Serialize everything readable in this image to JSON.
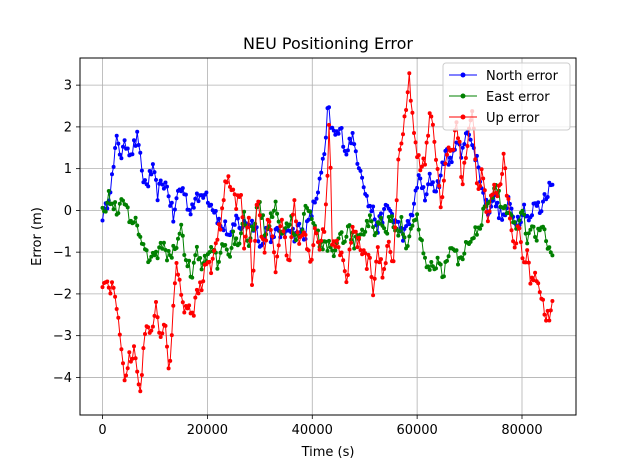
{
  "chart_data": {
    "type": "line",
    "title": "NEU Positioning Error",
    "xlabel": "Time (s)",
    "ylabel": "Error (m)",
    "xlim": [
      -4300,
      90300
    ],
    "ylim": [
      -4.9,
      3.65
    ],
    "xticks": [
      0,
      20000,
      40000,
      60000,
      80000
    ],
    "yticks": [
      -4,
      -3,
      -2,
      -1,
      0,
      1,
      2,
      3
    ],
    "grid": true,
    "legend_position": "top-right",
    "series": [
      {
        "name": "North error",
        "color": "#0000ff",
        "marker": "circle",
        "anchors": [
          [
            0,
            -0.1
          ],
          [
            500,
            -0.05
          ],
          [
            1200,
            0.4
          ],
          [
            2000,
            0.9
          ],
          [
            2800,
            1.8
          ],
          [
            3500,
            1.3
          ],
          [
            4500,
            1.6
          ],
          [
            5500,
            1.4
          ],
          [
            6800,
            1.8
          ],
          [
            7500,
            0.8
          ],
          [
            8500,
            0.6
          ],
          [
            9500,
            1.0
          ],
          [
            10500,
            0.4
          ],
          [
            11500,
            0.7
          ],
          [
            12500,
            0.5
          ],
          [
            13500,
            -0.2
          ],
          [
            14500,
            0.5
          ],
          [
            15500,
            0.5
          ],
          [
            16500,
            0.0
          ],
          [
            17500,
            0.2
          ],
          [
            18500,
            0.3
          ],
          [
            19500,
            0.5
          ],
          [
            20500,
            0.2
          ],
          [
            21500,
            0.0
          ],
          [
            22500,
            -0.4
          ],
          [
            23500,
            -0.4
          ],
          [
            24500,
            -0.7
          ],
          [
            25500,
            -0.2
          ],
          [
            26500,
            -0.4
          ],
          [
            27500,
            -0.3
          ],
          [
            28500,
            -0.3
          ],
          [
            29500,
            -0.5
          ],
          [
            30500,
            -0.9
          ],
          [
            31500,
            -0.3
          ],
          [
            32500,
            -0.8
          ],
          [
            33500,
            -0.4
          ],
          [
            34500,
            -0.7
          ],
          [
            35500,
            -0.3
          ],
          [
            36500,
            -0.6
          ],
          [
            37500,
            -0.4
          ],
          [
            38500,
            -0.6
          ],
          [
            39500,
            -0.2
          ],
          [
            40500,
            0.2
          ],
          [
            41500,
            0.7
          ],
          [
            42500,
            1.5
          ],
          [
            43000,
            2.5
          ],
          [
            43700,
            1.9
          ],
          [
            44500,
            1.8
          ],
          [
            45500,
            1.9
          ],
          [
            46500,
            1.4
          ],
          [
            47500,
            1.8
          ],
          [
            48500,
            1.3
          ],
          [
            49500,
            0.9
          ],
          [
            50500,
            0.2
          ],
          [
            51500,
            0.0
          ],
          [
            52500,
            -0.4
          ],
          [
            53500,
            -0.1
          ],
          [
            54500,
            0.1
          ],
          [
            55500,
            -0.2
          ],
          [
            56500,
            -0.4
          ],
          [
            57500,
            -0.6
          ],
          [
            58500,
            -0.3
          ],
          [
            59500,
            0.2
          ],
          [
            60500,
            0.9
          ],
          [
            61500,
            0.2
          ],
          [
            62500,
            0.8
          ],
          [
            63500,
            0.5
          ],
          [
            64500,
            0.8
          ],
          [
            65500,
            1.5
          ],
          [
            66500,
            1.0
          ],
          [
            67500,
            1.8
          ],
          [
            68500,
            1.2
          ],
          [
            69500,
            2.1
          ],
          [
            70500,
            1.5
          ],
          [
            71500,
            1.2
          ],
          [
            72500,
            0.4
          ],
          [
            73500,
            0.0
          ],
          [
            74500,
            0.3
          ],
          [
            75500,
            0.0
          ],
          [
            76500,
            -0.2
          ],
          [
            77500,
            0.2
          ],
          [
            78500,
            -0.2
          ],
          [
            79500,
            -0.2
          ],
          [
            80500,
            0.1
          ],
          [
            81500,
            -0.3
          ],
          [
            82500,
            0.2
          ],
          [
            83500,
            0.0
          ],
          [
            84500,
            0.4
          ],
          [
            85500,
            0.6
          ]
        ]
      },
      {
        "name": "East error",
        "color": "#008000",
        "marker": "circle",
        "anchors": [
          [
            0,
            0.2
          ],
          [
            500,
            0.1
          ],
          [
            1200,
            0.3
          ],
          [
            2000,
            0.2
          ],
          [
            3000,
            0.0
          ],
          [
            4000,
            0.2
          ],
          [
            5000,
            -0.1
          ],
          [
            6000,
            -0.2
          ],
          [
            7000,
            -0.5
          ],
          [
            8000,
            -1.0
          ],
          [
            9000,
            -1.1
          ],
          [
            10000,
            -1.2
          ],
          [
            11000,
            -0.8
          ],
          [
            12000,
            -1.0
          ],
          [
            13000,
            -1.1
          ],
          [
            14000,
            -0.8
          ],
          [
            15000,
            -0.5
          ],
          [
            16000,
            -1.2
          ],
          [
            17000,
            -1.5
          ],
          [
            18000,
            -1.0
          ],
          [
            19000,
            -1.4
          ],
          [
            20000,
            -1.1
          ],
          [
            21000,
            -0.9
          ],
          [
            22000,
            -1.3
          ],
          [
            23000,
            -0.7
          ],
          [
            24000,
            -1.1
          ],
          [
            25000,
            -0.6
          ],
          [
            26000,
            -1.0
          ],
          [
            27000,
            -0.2
          ],
          [
            28000,
            -0.8
          ],
          [
            29000,
            -0.3
          ],
          [
            30000,
            0.2
          ],
          [
            31000,
            -0.5
          ],
          [
            32000,
            -0.2
          ],
          [
            33000,
            0.3
          ],
          [
            34000,
            -0.5
          ],
          [
            35000,
            -0.4
          ],
          [
            36000,
            -0.3
          ],
          [
            37000,
            -0.7
          ],
          [
            38000,
            -0.4
          ],
          [
            39000,
            0.2
          ],
          [
            40000,
            -0.3
          ],
          [
            41000,
            -0.6
          ],
          [
            42000,
            -0.9
          ],
          [
            43000,
            -0.8
          ],
          [
            44000,
            -1.2
          ],
          [
            45000,
            -0.5
          ],
          [
            46000,
            -0.7
          ],
          [
            47000,
            -0.4
          ],
          [
            48000,
            -0.8
          ],
          [
            49000,
            -0.5
          ],
          [
            50000,
            -0.6
          ],
          [
            51000,
            -0.1
          ],
          [
            52000,
            -0.6
          ],
          [
            53000,
            -0.3
          ],
          [
            54000,
            -0.5
          ],
          [
            55000,
            -0.2
          ],
          [
            56000,
            -0.6
          ],
          [
            57000,
            -0.3
          ],
          [
            58000,
            -0.8
          ],
          [
            59000,
            -0.5
          ],
          [
            60000,
            -0.2
          ],
          [
            61000,
            -0.9
          ],
          [
            62000,
            -1.3
          ],
          [
            63000,
            -1.4
          ],
          [
            64000,
            -1.2
          ],
          [
            65000,
            -1.5
          ],
          [
            66000,
            -1.1
          ],
          [
            67000,
            -0.9
          ],
          [
            68000,
            -1.3
          ],
          [
            69000,
            -0.9
          ],
          [
            70000,
            -0.8
          ],
          [
            71000,
            -0.5
          ],
          [
            72000,
            -0.3
          ],
          [
            73000,
            0.0
          ],
          [
            74000,
            0.3
          ],
          [
            75000,
            0.5
          ],
          [
            76000,
            0.2
          ],
          [
            77000,
            0.0
          ],
          [
            78000,
            -0.1
          ],
          [
            79000,
            -0.5
          ],
          [
            80000,
            0.2
          ],
          [
            81000,
            -0.7
          ],
          [
            82000,
            -0.4
          ],
          [
            83000,
            -0.6
          ],
          [
            84000,
            -0.3
          ],
          [
            85000,
            -0.8
          ],
          [
            85800,
            -1.1
          ]
        ]
      },
      {
        "name": "Up error",
        "color": "#ff0000",
        "marker": "circle",
        "anchors": [
          [
            0,
            -1.7
          ],
          [
            600,
            -1.6
          ],
          [
            1200,
            -2.0
          ],
          [
            2000,
            -1.8
          ],
          [
            3000,
            -2.5
          ],
          [
            3700,
            -3.5
          ],
          [
            4300,
            -4.0
          ],
          [
            5000,
            -3.6
          ],
          [
            6000,
            -3.3
          ],
          [
            6800,
            -3.9
          ],
          [
            7300,
            -4.6
          ],
          [
            7800,
            -3.2
          ],
          [
            8500,
            -2.9
          ],
          [
            9500,
            -3.0
          ],
          [
            10300,
            -2.2
          ],
          [
            11000,
            -3.0
          ],
          [
            12000,
            -2.8
          ],
          [
            12800,
            -4.0
          ],
          [
            13500,
            -2.2
          ],
          [
            14000,
            -1.2
          ],
          [
            14800,
            -1.8
          ],
          [
            15500,
            -2.6
          ],
          [
            16500,
            -2.2
          ],
          [
            17200,
            -2.5
          ],
          [
            18000,
            -2.0
          ],
          [
            19000,
            -1.8
          ],
          [
            20000,
            -1.0
          ],
          [
            20500,
            -1.5
          ],
          [
            21500,
            -0.7
          ],
          [
            22500,
            -0.4
          ],
          [
            23500,
            0.9
          ],
          [
            24500,
            0.5
          ],
          [
            25500,
            0.2
          ],
          [
            26500,
            0.4
          ],
          [
            27000,
            -0.8
          ],
          [
            28000,
            -0.3
          ],
          [
            28600,
            -2.0
          ],
          [
            29500,
            0.5
          ],
          [
            30200,
            -0.6
          ],
          [
            31000,
            -1.1
          ],
          [
            31500,
            -0.2
          ],
          [
            32500,
            -0.6
          ],
          [
            33000,
            -1.5
          ],
          [
            34000,
            -0.2
          ],
          [
            35000,
            -0.8
          ],
          [
            35600,
            -1.5
          ],
          [
            36500,
            0.3
          ],
          [
            37500,
            -0.9
          ],
          [
            38500,
            -0.4
          ],
          [
            39500,
            -1.3
          ],
          [
            40500,
            -0.6
          ],
          [
            41500,
            -0.9
          ],
          [
            42500,
            -0.3
          ],
          [
            43300,
            2.2
          ],
          [
            43800,
            -0.7
          ],
          [
            45000,
            -0.9
          ],
          [
            46000,
            -1.2
          ],
          [
            46600,
            -1.7
          ],
          [
            47500,
            -0.5
          ],
          [
            48500,
            -0.7
          ],
          [
            49500,
            -1.0
          ],
          [
            50500,
            -1.3
          ],
          [
            51000,
            -1.1
          ],
          [
            51500,
            -2.0
          ],
          [
            52500,
            -1.0
          ],
          [
            53500,
            -1.5
          ],
          [
            54500,
            -0.7
          ],
          [
            55500,
            -1.3
          ],
          [
            56500,
            1.5
          ],
          [
            57500,
            2.0
          ],
          [
            58500,
            3.2
          ],
          [
            59500,
            1.8
          ],
          [
            60500,
            1.0
          ],
          [
            61500,
            1.2
          ],
          [
            62500,
            2.4
          ],
          [
            63500,
            1.5
          ],
          [
            64500,
            0.0
          ],
          [
            65500,
            1.4
          ],
          [
            66500,
            1.3
          ],
          [
            67500,
            2.0
          ],
          [
            68000,
            1.8
          ],
          [
            68500,
            0.5
          ],
          [
            69500,
            1.5
          ],
          [
            70500,
            2.5
          ],
          [
            71500,
            0.5
          ],
          [
            72500,
            1.0
          ],
          [
            73500,
            -0.4
          ],
          [
            74500,
            0.6
          ],
          [
            75500,
            0.4
          ],
          [
            76500,
            1.2
          ],
          [
            77500,
            0.0
          ],
          [
            78500,
            -0.8
          ],
          [
            79500,
            -0.4
          ],
          [
            80500,
            -1.4
          ],
          [
            81000,
            -0.8
          ],
          [
            81500,
            -1.8
          ],
          [
            82500,
            -1.6
          ],
          [
            83500,
            -2.1
          ],
          [
            84500,
            -2.5
          ],
          [
            85000,
            -2.6
          ],
          [
            85800,
            -2.2
          ]
        ]
      }
    ]
  }
}
